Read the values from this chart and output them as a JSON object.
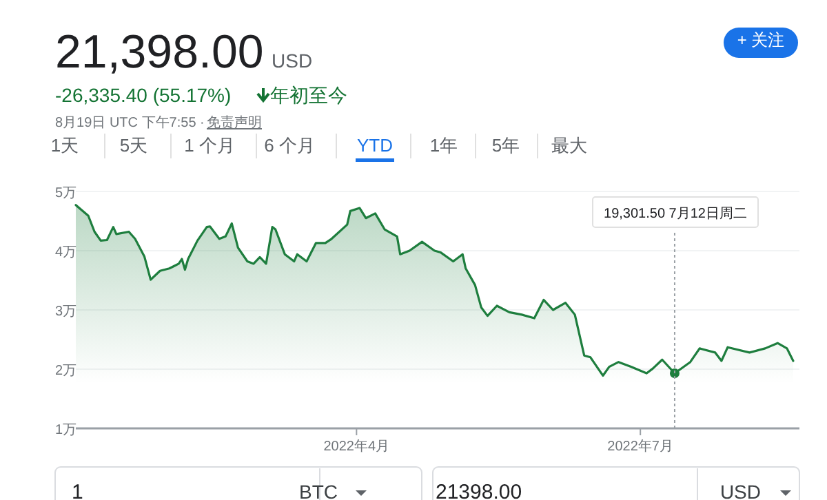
{
  "chart_data": {
    "type": "area",
    "title": "21,398.00",
    "subtitle": "-26,335.40 (55.17%)",
    "annotations": [
      "USD",
      "年初至今",
      "8月19日 UTC 下午7:55 ·",
      "免责声明",
      "1天",
      "5天",
      "1 个月",
      "6 个月",
      "YTD",
      "1年",
      "5年",
      "最大",
      "+ 关注",
      "1",
      "BTC",
      "21398.00",
      "USD",
      "19,301.50  7月12日周二"
    ],
    "x": [
      "2022-01-01",
      "2022-01-05",
      "2022-01-07",
      "2022-01-09",
      "2022-01-11",
      "2022-01-13",
      "2022-01-14",
      "2022-01-18",
      "2022-01-20",
      "2022-01-23",
      "2022-01-25",
      "2022-01-28",
      "2022-01-31",
      "2022-02-03",
      "2022-02-04",
      "2022-02-05",
      "2022-02-06",
      "2022-02-09",
      "2022-02-12",
      "2022-02-13",
      "2022-02-16",
      "2022-02-18",
      "2022-02-20",
      "2022-02-22",
      "2022-02-25",
      "2022-02-27",
      "2022-03-01",
      "2022-03-03",
      "2022-03-05",
      "2022-03-06",
      "2022-03-09",
      "2022-03-12",
      "2022-03-13",
      "2022-03-16",
      "2022-03-19",
      "2022-03-22",
      "2022-03-24",
      "2022-03-29",
      "2022-03-30",
      "2022-04-02",
      "2022-04-04",
      "2022-04-07",
      "2022-04-10",
      "2022-04-14",
      "2022-04-15",
      "2022-04-18",
      "2022-04-22",
      "2022-04-26",
      "2022-04-28",
      "2022-05-02",
      "2022-05-05",
      "2022-05-06",
      "2022-05-09",
      "2022-05-11",
      "2022-05-13",
      "2022-05-16",
      "2022-05-20",
      "2022-05-24",
      "2022-05-28",
      "2022-05-31",
      "2022-06-03",
      "2022-06-07",
      "2022-06-10",
      "2022-06-13",
      "2022-06-15",
      "2022-06-19",
      "2022-06-21",
      "2022-06-24",
      "2022-06-28",
      "2022-07-03",
      "2022-07-05",
      "2022-07-08",
      "2022-07-12",
      "2022-07-17",
      "2022-07-20",
      "2022-07-25",
      "2022-07-27",
      "2022-07-29",
      "2022-08-05",
      "2022-08-10",
      "2022-08-14",
      "2022-08-17",
      "2022-08-19"
    ],
    "series": [
      {
        "color": "#1e7e3e",
        "values": [
          4.77,
          4.59,
          4.32,
          4.17,
          4.18,
          4.4,
          4.28,
          4.32,
          4.2,
          3.9,
          3.51,
          3.66,
          3.7,
          3.78,
          3.86,
          3.68,
          3.86,
          4.17,
          4.4,
          4.41,
          4.2,
          4.24,
          4.46,
          4.05,
          3.82,
          3.78,
          3.89,
          3.78,
          4.4,
          4.36,
          3.94,
          3.82,
          3.94,
          3.82,
          4.13,
          4.13,
          4.2,
          4.44,
          4.67,
          4.72,
          4.55,
          4.63,
          4.36,
          4.24,
          3.94,
          4.0,
          4.15,
          4.0,
          3.97,
          3.82,
          3.94,
          3.7,
          3.42,
          3.04,
          2.9,
          3.07,
          2.96,
          2.92,
          2.86,
          3.17,
          3.0,
          3.12,
          2.92,
          2.23,
          2.2,
          1.89,
          2.04,
          2.12,
          2.04,
          1.93,
          2.01,
          2.16,
          1.93,
          2.12,
          2.35,
          2.28,
          2.14,
          2.37,
          2.28,
          2.35,
          2.44,
          2.35,
          2.14
        ]
      },
      {
        "type": "scatter",
        "color": "#1e7e3e",
        "x": [
          "2022-07-12"
        ],
        "values": [
          1.93
        ]
      }
    ],
    "xlim": [
      "2022-01-01",
      "2022-08-21"
    ],
    "xticks": [
      {
        "value": "2022-04-01",
        "label": "2022年4月"
      },
      {
        "value": "2022-07-01",
        "label": "2022年7月"
      }
    ],
    "ylim": [
      1,
      5
    ],
    "yticks": [
      {
        "value": 1,
        "label": "1万"
      },
      {
        "value": 2,
        "label": "2万"
      },
      {
        "value": 3,
        "label": "3万"
      },
      {
        "value": 4,
        "label": "4万"
      },
      {
        "value": 5,
        "label": "5万"
      }
    ],
    "grid": "y",
    "ref_lines": [
      {
        "axis": "x",
        "value": "2022-07-12",
        "color": "#9aa0a6",
        "line_style": "dotted"
      }
    ]
  }
}
